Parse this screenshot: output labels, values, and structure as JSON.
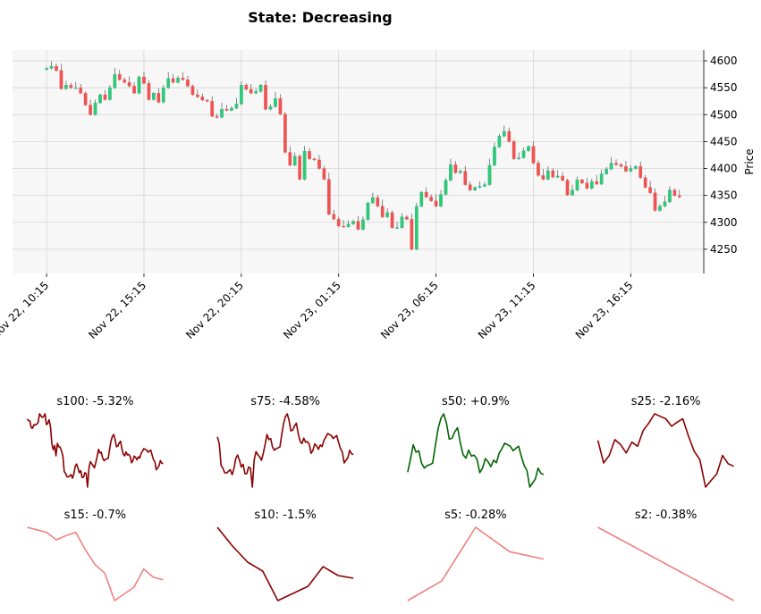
{
  "figure": {
    "title": "State: Decreasing"
  },
  "colors": {
    "up": "#26a69a",
    "up_fill": "#2ecc71",
    "down": "#ef5350",
    "wick": "#555555",
    "plot_bg": "#f7f7f7",
    "grid": "#d5d5d5",
    "dark_red": "#8b0000",
    "dark_green": "#006400",
    "light_red": "#f08080"
  },
  "chart_data": [
    {
      "type": "candlestick",
      "title": "State: Decreasing",
      "ylabel": "Price",
      "ylim": [
        4205,
        4620
      ],
      "yticks": [
        4250,
        4300,
        4350,
        4400,
        4450,
        4500,
        4550,
        4600
      ],
      "grid": true,
      "xtick_labels": [
        "Nov 22, 10:15",
        "Nov 22, 15:15",
        "Nov 22, 20:15",
        "Nov 23, 01:15",
        "Nov 23, 06:15",
        "Nov 23, 11:15",
        "Nov 23, 16:15"
      ],
      "xtick_index": [
        0,
        20,
        40,
        60,
        80,
        100,
        120
      ],
      "x_index_range": [
        -7,
        135
      ],
      "close": [
        4586,
        4590,
        4582,
        4548,
        4555,
        4550,
        4550,
        4540,
        4518,
        4500,
        4522,
        4537,
        4528,
        4550,
        4575,
        4565,
        4560,
        4553,
        4540,
        4570,
        4558,
        4528,
        4540,
        4523,
        4550,
        4567,
        4560,
        4568,
        4565,
        4553,
        4537,
        4533,
        4527,
        4525,
        4497,
        4495,
        4510,
        4508,
        4512,
        4520,
        4555,
        4547,
        4540,
        4543,
        4555,
        4510,
        4515,
        4530,
        4501,
        4430,
        4406,
        4423,
        4380,
        4432,
        4418,
        4416,
        4400,
        4380,
        4315,
        4306,
        4293,
        4292,
        4297,
        4302,
        4287,
        4305,
        4336,
        4346,
        4330,
        4310,
        4318,
        4290,
        4290,
        4310,
        4306,
        4250,
        4330,
        4356,
        4347,
        4340,
        4330,
        4352,
        4378,
        4407,
        4392,
        4395,
        4370,
        4360,
        4365,
        4367,
        4370,
        4406,
        4440,
        4460,
        4469,
        4450,
        4418,
        4420,
        4433,
        4441,
        4410,
        4387,
        4380,
        4396,
        4384,
        4386,
        4378,
        4351,
        4360,
        4379,
        4373,
        4363,
        4376,
        4371,
        4390,
        4399,
        4410,
        4407,
        4404,
        4395,
        4400,
        4404,
        4383,
        4365,
        4355,
        4322,
        4330,
        4338,
        4360,
        4350,
        4347
      ],
      "sparklines": [
        {
          "label": "s100: -5.32%",
          "color": "#8b0000"
        },
        {
          "label": "s75: -4.58%",
          "color": "#8b0000"
        },
        {
          "label": "s50: +0.9%",
          "color": "#006400"
        },
        {
          "label": "s25: -2.16%",
          "color": "#8b0000"
        },
        {
          "label": "s15: -0.7%",
          "color": "#f08080"
        },
        {
          "label": "s10: -1.5%",
          "color": "#8b0000"
        },
        {
          "label": "s5: -0.28%",
          "color": "#f08080"
        },
        {
          "label": "s2: -0.38%",
          "color": "#f08080"
        }
      ],
      "sparkline_windows": [
        100,
        75,
        50,
        25,
        15,
        10,
        5,
        2
      ]
    }
  ]
}
